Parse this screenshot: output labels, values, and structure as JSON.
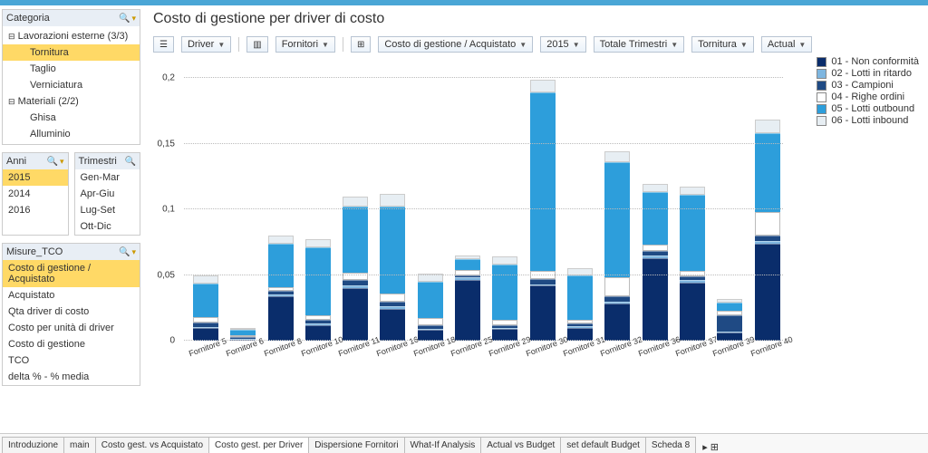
{
  "title": "Costo di gestione per driver di costo",
  "colors": {
    "s1": "#0a2d6b",
    "s2": "#7eb6e0",
    "s3": "#1f4a84",
    "s4": "#ffffff",
    "s5": "#2d9edb",
    "s6": "#e7eef3",
    "hdr": "#e8eef5"
  },
  "categoria": {
    "title": "Categoria",
    "groups": [
      {
        "label": "Lavorazioni esterne (3/3)",
        "items": [
          "Tornitura",
          "Taglio",
          "Verniciatura"
        ],
        "selected": "Tornitura"
      },
      {
        "label": "Materiali (2/2)",
        "items": [
          "Ghisa",
          "Alluminio"
        ]
      }
    ]
  },
  "anni": {
    "title": "Anni",
    "items": [
      "2015",
      "2014",
      "2016"
    ],
    "selected": "2015"
  },
  "trimestri": {
    "title": "Trimestri",
    "items": [
      "Gen-Mar",
      "Apr-Giu",
      "Lug-Set",
      "Ott-Dic"
    ]
  },
  "misure": {
    "title": "Misure_TCO",
    "items": [
      "Costo di gestione / Acquistato",
      "Acquistato",
      "Qta driver di costo",
      "Costo per unità di driver",
      "Costo di gestione",
      "TCO",
      "delta % - % media"
    ],
    "selected": "Costo di gestione / Acquistato"
  },
  "toolbar": {
    "driver": "Driver",
    "fornitori": "Fornitori",
    "measure": "Costo di gestione / Acquistato",
    "year": "2015",
    "period": "Totale Trimestri",
    "cat": "Tornitura",
    "scenario": "Actual"
  },
  "legend": [
    {
      "c": "s1",
      "label": "01 - Non conformità"
    },
    {
      "c": "s2",
      "label": "02 - Lotti in ritardo"
    },
    {
      "c": "s3",
      "label": "03 - Campioni"
    },
    {
      "c": "s4",
      "label": "04 - Righe ordini"
    },
    {
      "c": "s5",
      "label": "05 - Lotti outbound"
    },
    {
      "c": "s6",
      "label": "06 - Lotti inbound"
    }
  ],
  "chart": {
    "ymax": 0.2,
    "ylabels": [
      "0",
      "0,05",
      "0,1",
      "0,15",
      "0,2"
    ],
    "categories": [
      "Fornitore 5",
      "Fornitore 6",
      "Fornitore 8",
      "Fornitore 10",
      "Fornitore 11",
      "Fornitore 16",
      "Fornitore 18",
      "Fornitore 25",
      "Fornitore 29",
      "Fornitore 30",
      "Fornitore 31",
      "Fornitore 32",
      "Fornitore 36",
      "Fornitore 37",
      "Fornitore 39",
      "Fornitore 40"
    ],
    "series": [
      {
        "s1": 0.01,
        "s2": 0.0,
        "s3": 0.003,
        "s4": 0.004,
        "s5": 0.026,
        "s6": 0.006
      },
      {
        "s1": 0.001,
        "s2": 0.0,
        "s3": 0.001,
        "s4": 0.001,
        "s5": 0.004,
        "s6": 0.001
      },
      {
        "s1": 0.034,
        "s2": 0.001,
        "s3": 0.003,
        "s4": 0.003,
        "s5": 0.033,
        "s6": 0.006
      },
      {
        "s1": 0.012,
        "s2": 0.001,
        "s3": 0.003,
        "s4": 0.003,
        "s5": 0.052,
        "s6": 0.006
      },
      {
        "s1": 0.04,
        "s2": 0.002,
        "s3": 0.004,
        "s4": 0.006,
        "s5": 0.05,
        "s6": 0.008
      },
      {
        "s1": 0.024,
        "s2": 0.002,
        "s3": 0.004,
        "s4": 0.006,
        "s5": 0.066,
        "s6": 0.01
      },
      {
        "s1": 0.008,
        "s2": 0.001,
        "s3": 0.003,
        "s4": 0.005,
        "s5": 0.028,
        "s6": 0.006
      },
      {
        "s1": 0.046,
        "s2": 0.002,
        "s3": 0.002,
        "s4": 0.004,
        "s5": 0.008,
        "s6": 0.003
      },
      {
        "s1": 0.009,
        "s2": 0.001,
        "s3": 0.002,
        "s4": 0.004,
        "s5": 0.042,
        "s6": 0.006
      },
      {
        "s1": 0.042,
        "s2": 0.001,
        "s3": 0.004,
        "s4": 0.006,
        "s5": 0.136,
        "s6": 0.01
      },
      {
        "s1": 0.01,
        "s2": 0.001,
        "s3": 0.002,
        "s4": 0.003,
        "s5": 0.034,
        "s6": 0.005
      },
      {
        "s1": 0.028,
        "s2": 0.002,
        "s3": 0.004,
        "s4": 0.014,
        "s5": 0.088,
        "s6": 0.008
      },
      {
        "s1": 0.063,
        "s2": 0.002,
        "s3": 0.003,
        "s4": 0.005,
        "s5": 0.04,
        "s6": 0.006
      },
      {
        "s1": 0.044,
        "s2": 0.002,
        "s3": 0.003,
        "s4": 0.004,
        "s5": 0.058,
        "s6": 0.006
      },
      {
        "s1": 0.006,
        "s2": 0.001,
        "s3": 0.012,
        "s4": 0.004,
        "s5": 0.006,
        "s6": 0.003
      },
      {
        "s1": 0.074,
        "s2": 0.002,
        "s3": 0.004,
        "s4": 0.018,
        "s5": 0.06,
        "s6": 0.01
      }
    ]
  },
  "tabs": [
    "Introduzione",
    "main",
    "Costo gest. vs Acquistato",
    "Costo gest. per Driver",
    "Dispersione Fornitori",
    "What-If Analysis",
    "Actual vs Budget",
    "set default Budget",
    "Scheda 8"
  ],
  "active_tab": "Costo gest. per Driver"
}
